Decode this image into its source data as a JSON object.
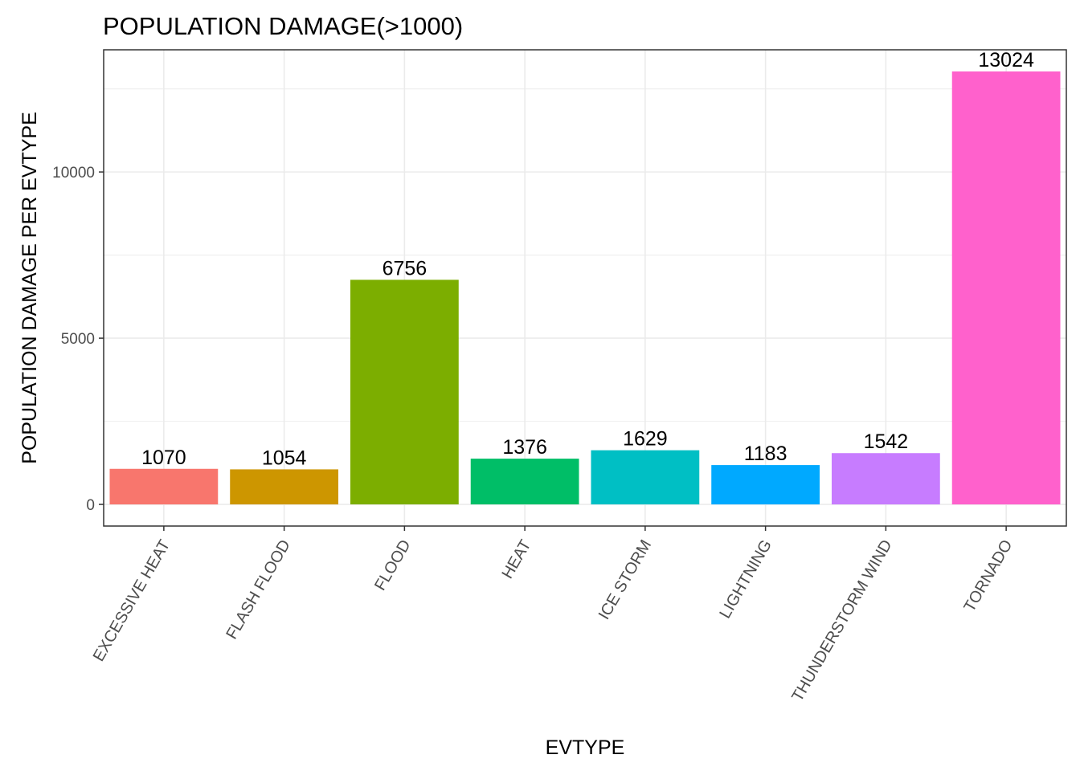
{
  "chart_data": {
    "type": "bar",
    "title": "POPULATION DAMAGE(>1000)",
    "xlabel": "EVTYPE",
    "ylabel": "POPULATION DAMAGE PER EVTYPE",
    "categories": [
      "EXCESSIVE HEAT",
      "FLASH FLOOD",
      "FLOOD",
      "HEAT",
      "ICE STORM",
      "LIGHTNING",
      "THUNDERSTORM WIND",
      "TORNADO"
    ],
    "values": [
      1070,
      1054,
      6756,
      1376,
      1629,
      1183,
      1542,
      13024
    ],
    "data_labels": [
      "1070",
      "1054",
      "6756",
      "1376",
      "1629",
      "1183",
      "1542",
      "13024"
    ],
    "colors": [
      "#F8766D",
      "#CD9600",
      "#7CAE00",
      "#00BE67",
      "#00BFC4",
      "#00A9FF",
      "#C77CFF",
      "#FF61CC"
    ],
    "yticks": [
      0,
      5000,
      10000
    ],
    "ytick_labels": [
      "0",
      "5000",
      "10000"
    ],
    "ylim": [
      -651,
      13675
    ],
    "grid": true,
    "legend": "none"
  }
}
